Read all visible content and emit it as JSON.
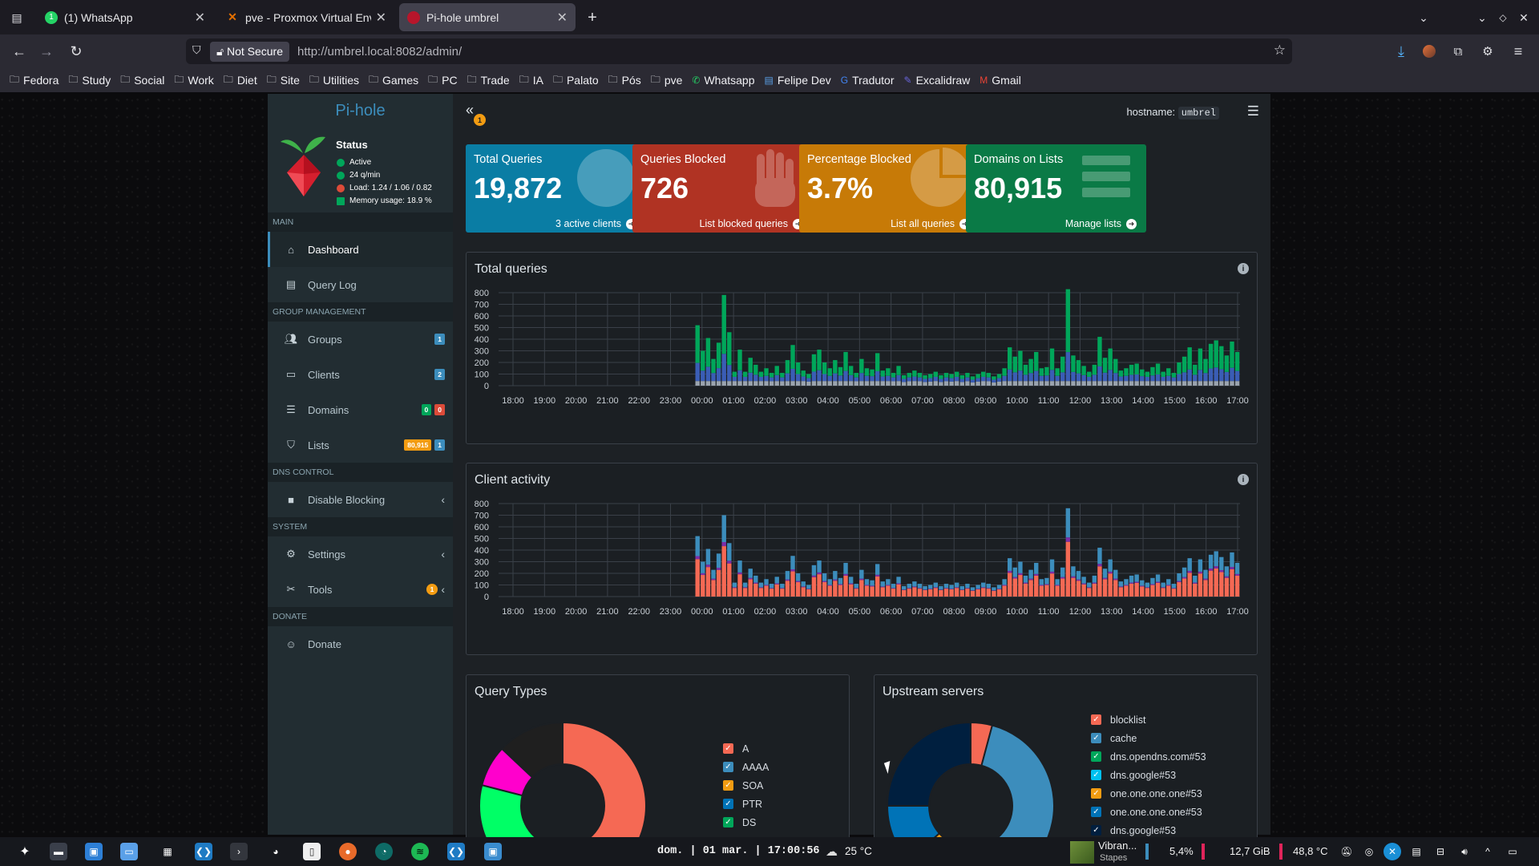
{
  "browser": {
    "tabs": [
      {
        "title": "(1) WhatsApp",
        "icon": "whatsapp-icon",
        "active": false
      },
      {
        "title": "pve - Proxmox Virtual Envir",
        "icon": "proxmox-icon",
        "active": false
      },
      {
        "title": "Pi-hole umbrel",
        "icon": "pihole-icon",
        "active": true
      }
    ],
    "not_secure_label": "Not Secure",
    "url": "http://umbrel.local:8082/admin/",
    "bookmarks": [
      {
        "label": "Fedora",
        "icon": "folder-icon"
      },
      {
        "label": "Study",
        "icon": "folder-icon"
      },
      {
        "label": "Social",
        "icon": "folder-icon"
      },
      {
        "label": "Work",
        "icon": "folder-icon"
      },
      {
        "label": "Diet",
        "icon": "folder-icon"
      },
      {
        "label": "Site",
        "icon": "folder-icon"
      },
      {
        "label": "Utilities",
        "icon": "folder-icon"
      },
      {
        "label": "Games",
        "icon": "folder-icon"
      },
      {
        "label": "PC",
        "icon": "folder-icon"
      },
      {
        "label": "Trade",
        "icon": "folder-icon"
      },
      {
        "label": "IA",
        "icon": "folder-icon"
      },
      {
        "label": "Palato",
        "icon": "folder-icon"
      },
      {
        "label": "Pós",
        "icon": "folder-icon"
      },
      {
        "label": "pve",
        "icon": "folder-icon"
      },
      {
        "label": "Whatsapp",
        "icon": "whatsapp-icon"
      },
      {
        "label": "Felipe Dev",
        "icon": "page-icon"
      },
      {
        "label": "Tradutor",
        "icon": "google-icon"
      },
      {
        "label": "Excalidraw",
        "icon": "excalidraw-icon"
      },
      {
        "label": "Gmail",
        "icon": "gmail-icon"
      }
    ]
  },
  "sidebar": {
    "brand": "Pi-hole",
    "status_title": "Status",
    "status": [
      {
        "text": "Active",
        "color": "#00a65a"
      },
      {
        "text": "24 q/min",
        "color": "#00a65a"
      },
      {
        "text": "Load: 1.24 / 1.06 / 0.82",
        "color": "#dd4b39"
      },
      {
        "text": "Memory usage: 18.9 %",
        "color": "#00a65a"
      }
    ],
    "sections": {
      "main": "MAIN",
      "group": "GROUP MANAGEMENT",
      "dns": "DNS CONTROL",
      "system": "SYSTEM",
      "donate": "DONATE"
    },
    "items": {
      "dashboard": "Dashboard",
      "query_log": "Query Log",
      "groups": "Groups",
      "groups_badge": "1",
      "clients": "Clients",
      "clients_badge": "2",
      "domains": "Domains",
      "domains_badge_allow": "0",
      "domains_badge_deny": "0",
      "lists": "Lists",
      "lists_badge_domains": "80,915",
      "lists_badge_lists": "1",
      "disable_blocking": "Disable Blocking",
      "settings": "Settings",
      "tools": "Tools",
      "tools_badge": "1",
      "donate": "Donate"
    }
  },
  "header": {
    "hostname_label": "hostname:",
    "hostname": "umbrel",
    "notification_count": "1"
  },
  "stats": [
    {
      "title": "Total Queries",
      "value": "19,872",
      "footer": "3 active clients",
      "color": "#00c0ef",
      "bg": "#0a7da4"
    },
    {
      "title": "Queries Blocked",
      "value": "726",
      "footer": "List blocked queries",
      "color": "#dd4b39",
      "bg": "#b03323"
    },
    {
      "title": "Percentage Blocked",
      "value": "3.7%",
      "footer": "List all queries",
      "color": "#f39c12",
      "bg": "#c77a07"
    },
    {
      "title": "Domains on Lists",
      "value": "80,915",
      "footer": "Manage lists",
      "color": "#00a65a",
      "bg": "#0a7a46"
    }
  ],
  "panels": {
    "total_queries": "Total queries",
    "client_activity": "Client activity",
    "query_types": "Query Types",
    "upstream_servers": "Upstream servers"
  },
  "chart_data": [
    {
      "type": "bar",
      "title": "Total queries",
      "stacked": true,
      "ylim": [
        0,
        800
      ],
      "yticks": [
        "0",
        "100",
        "200",
        "300",
        "400",
        "500",
        "600",
        "700",
        "800"
      ],
      "xticks": [
        "18:00",
        "19:00",
        "20:00",
        "21:00",
        "22:00",
        "23:00",
        "00:00",
        "01:00",
        "02:00",
        "03:00",
        "04:00",
        "05:00",
        "06:00",
        "07:00",
        "08:00",
        "09:00",
        "10:00",
        "11:00",
        "12:00",
        "13:00",
        "14:00",
        "15:00",
        "16:00",
        "17:00"
      ],
      "grid": true,
      "colors": {
        "permitted": "#00a65a",
        "cached": "#3a5db5",
        "blocked": "#9aa3ad"
      },
      "totals": [
        520,
        300,
        410,
        230,
        370,
        780,
        460,
        120,
        310,
        120,
        240,
        180,
        120,
        150,
        110,
        170,
        110,
        220,
        350,
        200,
        130,
        100,
        270,
        310,
        200,
        150,
        220,
        160,
        290,
        170,
        110,
        230,
        150,
        140,
        280,
        130,
        150,
        110,
        170,
        90,
        110,
        130,
        110,
        90,
        100,
        120,
        90,
        110,
        100,
        120,
        90,
        110,
        80,
        100,
        120,
        110,
        80,
        100,
        150,
        330,
        250,
        300,
        180,
        230,
        290,
        150,
        160,
        320,
        150,
        250,
        830,
        260,
        220,
        170,
        120,
        180,
        420,
        240,
        320,
        230,
        130,
        150,
        180,
        190,
        140,
        120,
        160,
        190,
        120,
        150,
        110,
        200,
        250,
        330,
        180,
        320,
        230,
        360,
        390,
        340,
        260,
        380,
        290
      ]
    },
    {
      "type": "bar",
      "title": "Client activity",
      "stacked": true,
      "ylim": [
        0,
        800
      ],
      "yticks": [
        "0",
        "100",
        "200",
        "300",
        "400",
        "500",
        "600",
        "700",
        "800"
      ],
      "xticks": [
        "18:00",
        "19:00",
        "20:00",
        "21:00",
        "22:00",
        "23:00",
        "00:00",
        "01:00",
        "02:00",
        "03:00",
        "04:00",
        "05:00",
        "06:00",
        "07:00",
        "08:00",
        "09:00",
        "10:00",
        "11:00",
        "12:00",
        "13:00",
        "14:00",
        "15:00",
        "16:00",
        "17:00"
      ],
      "grid": true,
      "colors": {
        "client_a": "#3c8dbc",
        "client_b": "#f56954",
        "client_c": "#7b2ea8"
      },
      "totals": [
        520,
        300,
        410,
        230,
        370,
        700,
        460,
        120,
        310,
        120,
        240,
        180,
        120,
        150,
        110,
        170,
        110,
        220,
        350,
        200,
        130,
        100,
        270,
        310,
        200,
        150,
        220,
        160,
        290,
        170,
        110,
        230,
        150,
        140,
        280,
        130,
        150,
        110,
        170,
        90,
        110,
        130,
        110,
        90,
        100,
        120,
        90,
        110,
        100,
        120,
        90,
        110,
        80,
        100,
        120,
        110,
        80,
        100,
        150,
        330,
        250,
        300,
        180,
        230,
        290,
        150,
        160,
        320,
        150,
        250,
        760,
        260,
        220,
        170,
        120,
        180,
        420,
        240,
        320,
        230,
        130,
        150,
        180,
        190,
        140,
        120,
        160,
        190,
        120,
        150,
        110,
        200,
        250,
        330,
        180,
        320,
        230,
        360,
        390,
        340,
        260,
        380,
        290
      ]
    },
    {
      "type": "pie",
      "title": "Query Types",
      "labels": [
        "A",
        "AAAA",
        "SOA",
        "PTR",
        "DS"
      ],
      "values": [
        50,
        2,
        1,
        1,
        25
      ],
      "colors": [
        "#f56954",
        "#3c8dbc",
        "#f39c12",
        "#00c0ef",
        "#00ff66"
      ],
      "extra_slices": [
        {
          "value": 8,
          "color": "#ff00cc"
        },
        {
          "value": 13,
          "color": "#1f1f1f"
        }
      ]
    },
    {
      "type": "pie",
      "title": "Upstream servers",
      "labels": [
        "blocklist",
        "cache",
        "dns.opendns.com#53",
        "dns.google#53",
        "one.one.one.one#53",
        "one.one.one.one#53",
        "dns.google#53"
      ],
      "values": [
        4,
        46,
        3,
        3,
        5,
        11,
        24
      ],
      "colors": [
        "#f56954",
        "#3c8dbc",
        "#00a65a",
        "#00c0ef",
        "#f39c12",
        "#0073b7",
        "#001f3f"
      ]
    }
  ],
  "legends": {
    "query_types": [
      {
        "label": "A",
        "color": "#f56954"
      },
      {
        "label": "AAAA",
        "color": "#3c8dbc"
      },
      {
        "label": "SOA",
        "color": "#f39c12"
      },
      {
        "label": "PTR",
        "color": "#0073b7"
      },
      {
        "label": "DS",
        "color": "#00a65a"
      }
    ],
    "upstream": [
      {
        "label": "blocklist",
        "color": "#f56954"
      },
      {
        "label": "cache",
        "color": "#3c8dbc"
      },
      {
        "label": "dns.opendns.com#53",
        "color": "#00a65a"
      },
      {
        "label": "dns.google#53",
        "color": "#00c0ef"
      },
      {
        "label": "one.one.one.one#53",
        "color": "#f39c12"
      },
      {
        "label": "one.one.one.one#53",
        "color": "#0073b7"
      },
      {
        "label": "dns.google#53",
        "color": "#001f3f"
      }
    ]
  },
  "taskbar": {
    "clock": "dom. | 01 mar. | 17:00:56",
    "weather": "25 °C",
    "media_title": "Vibran...",
    "media_artist": "Stapes",
    "cpu": "5,4%",
    "memory": "12,7 GiB",
    "temp": "48,8 °C"
  }
}
